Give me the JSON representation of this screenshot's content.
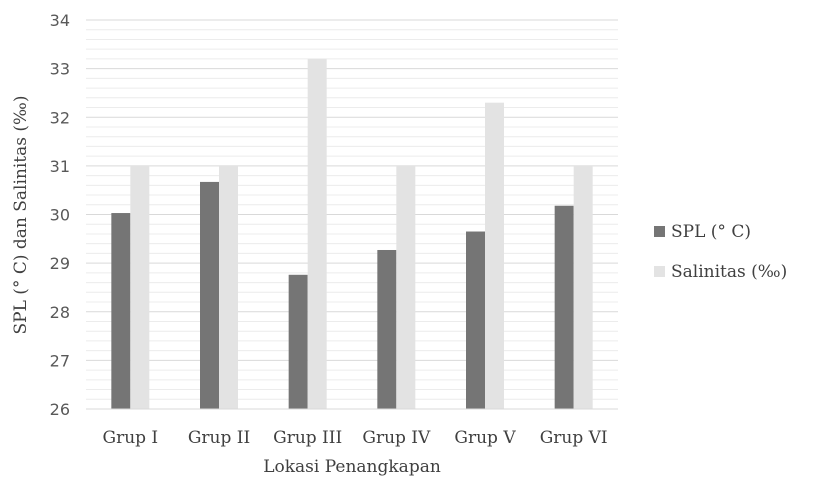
{
  "chart_data": {
    "type": "bar",
    "categories": [
      "Grup I",
      "Grup II",
      "Grup III",
      "Grup IV",
      "Grup V",
      "Grup VI"
    ],
    "series": [
      {
        "name": "SPL (° C)",
        "values": [
          30.03,
          30.67,
          28.76,
          29.27,
          29.65,
          30.18
        ],
        "color": "#757575"
      },
      {
        "name": "Salinitas (‰)",
        "values": [
          31.0,
          31.0,
          33.2,
          31.0,
          32.3,
          31.0
        ],
        "color": "#e3e3e3"
      }
    ],
    "xlabel": "Lokasi Penangkapan",
    "ylabel": "SPL (° C) dan Salinitas (‰)",
    "ylim": [
      26,
      34
    ],
    "yticks": [
      "26",
      "27",
      "28",
      "29",
      "30",
      "31",
      "32",
      "33",
      "34"
    ],
    "grid": true,
    "legend": "right"
  }
}
